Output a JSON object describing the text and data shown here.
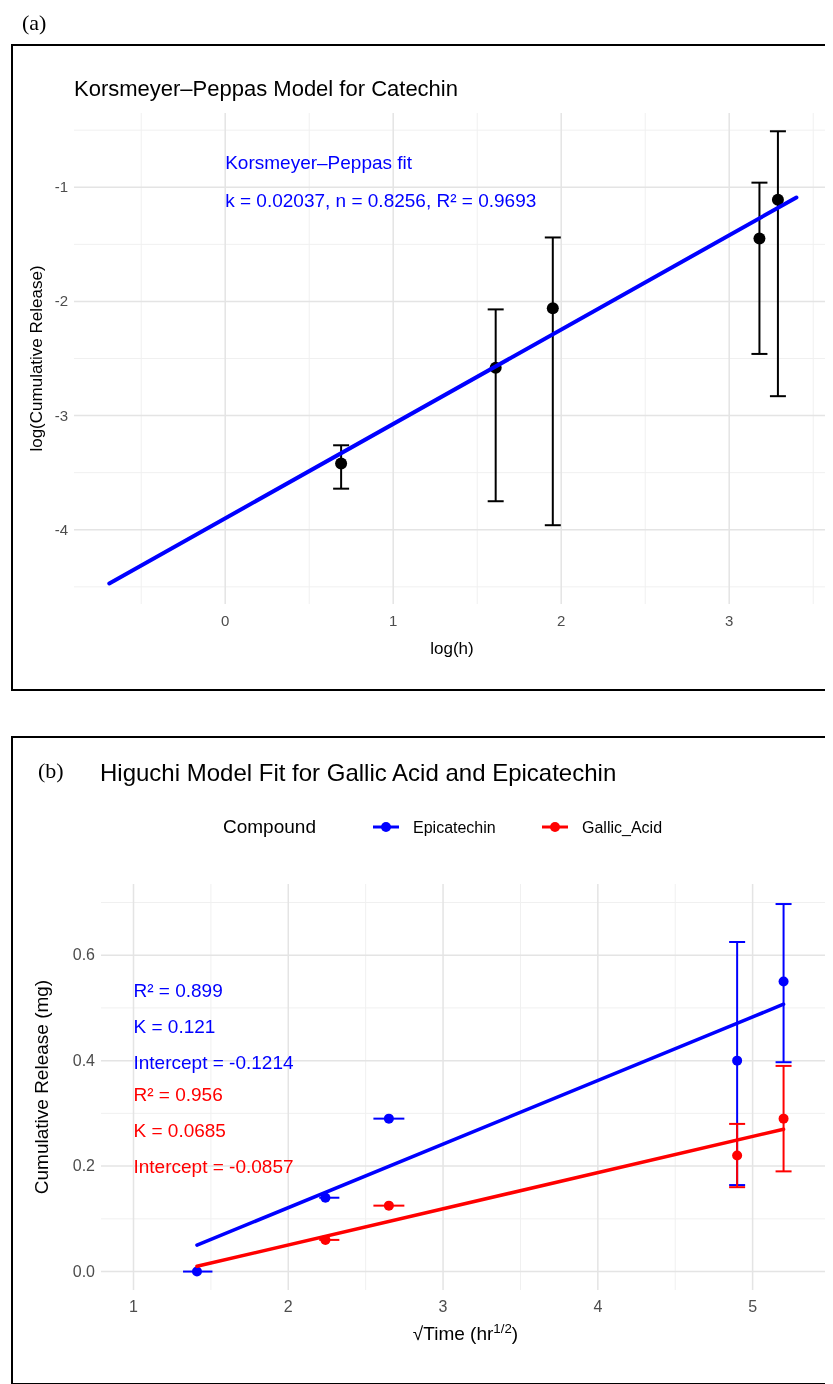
{
  "chart_data": [
    {
      "type": "scatter",
      "title": "Korsmeyer–Peppas Model for Catechin",
      "xlabel": "log(h)",
      "ylabel": "log(Cumulative Release)",
      "annotations": [
        "(a)",
        "Korsmeyer–Peppas fit",
        "k = 0.02037, n = 0.8256, R² = 0.9693"
      ],
      "xlim": [
        -0.9,
        3.6
      ],
      "ylim": [
        -4.65,
        -0.35
      ],
      "xticks": [
        0,
        1,
        2,
        3
      ],
      "yticks": [
        -4,
        -3,
        -2,
        -1
      ],
      "grid": true,
      "legend": false,
      "series": [
        {
          "marker": "circle",
          "color": "#000000",
          "x": [
            0.69,
            1.61,
            1.95,
            3.18,
            3.29
          ],
          "values": [
            -3.42,
            -2.58,
            -2.06,
            -1.45,
            -1.11
          ],
          "errors": [
            [
              -3.64,
              -3.26
            ],
            [
              -3.75,
              -2.07
            ],
            [
              -3.96,
              -1.44
            ],
            [
              -2.46,
              -0.96
            ],
            [
              -2.83,
              -0.51
            ]
          ]
        },
        {
          "type": "line",
          "color": "#0000ff",
          "x": [
            -0.69,
            3.4
          ],
          "values": [
            -4.47,
            -1.09
          ]
        }
      ]
    },
    {
      "type": "scatter",
      "title": "Higuchi Model Fit for Gallic Acid and Epicatechin",
      "xlabel": "√Time (hr$^{1/2}$)",
      "ylabel": "Cumulative Release (mg)",
      "legend_title": "Compound",
      "legend": "top",
      "annotations": [
        "(b)",
        "R² = 0.899",
        "K = 0.121",
        "Intercept = -0.1214",
        "R² = 0.956",
        "K = 0.0685",
        "Intercept = -0.0857"
      ],
      "xlim": [
        0.79,
        5.5
      ],
      "ylim": [
        -0.035,
        0.735
      ],
      "xticks": [
        1,
        2,
        3,
        4,
        5
      ],
      "yticks": [
        {
          "value": 0,
          "label": "0.0"
        },
        {
          "value": 0.2,
          "label": "0.2"
        },
        {
          "value": 0.4,
          "label": "0.4"
        },
        {
          "value": 0.6,
          "label": "0.6"
        }
      ],
      "grid": true,
      "series": [
        {
          "marker": "circle",
          "name": "Epicatechin",
          "color": "#0000ff",
          "x": [
            1.41,
            2.24,
            2.65,
            4.9,
            5.2
          ],
          "values": [
            0,
            0.14,
            0.29,
            0.4,
            0.55
          ],
          "xerrors": [
            [
              1.32,
              1.51
            ],
            [
              2.2,
              2.33
            ],
            [
              2.55,
              2.75
            ],
            null,
            null
          ],
          "errors": [
            null,
            null,
            null,
            [
              0.164,
              0.625
            ],
            [
              0.397,
              0.697
            ]
          ]
        },
        {
          "marker": "circle",
          "name": "Gallic_Acid",
          "color": "#ff0000",
          "x": [
            2.24,
            2.65,
            4.9,
            5.2
          ],
          "values": [
            0.06,
            0.125,
            0.22,
            0.29
          ],
          "xerrors": [
            [
              2.2,
              2.33
            ],
            [
              2.55,
              2.75
            ],
            null,
            null
          ],
          "errors": [
            null,
            null,
            [
              0.16,
              0.28
            ],
            [
              0.19,
              0.39
            ]
          ]
        },
        {
          "type": "line",
          "color": "#0000ff",
          "x": [
            1.41,
            5.2
          ],
          "values": [
            0.05,
            0.507
          ]
        },
        {
          "type": "line",
          "color": "#ff0000",
          "x": [
            1.41,
            5.2
          ],
          "values": [
            0.01,
            0.27
          ]
        }
      ]
    }
  ]
}
